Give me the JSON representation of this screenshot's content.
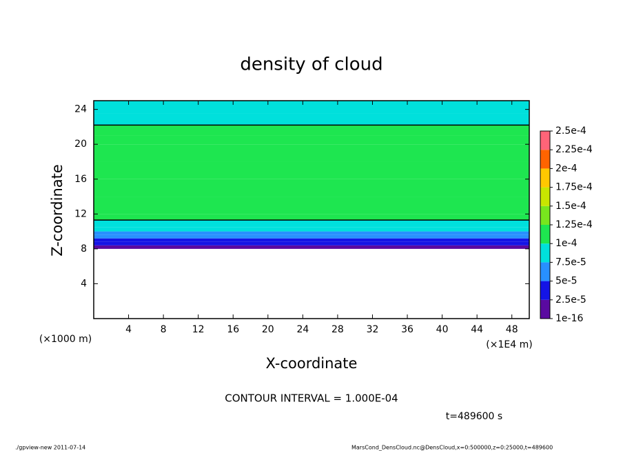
{
  "chart_data": {
    "type": "contour-profile",
    "title": "density of cloud",
    "x_label": "X-coordinate",
    "y_label": "Z-coordinate",
    "x_unit": "(×1E4 m)",
    "y_unit": "(×1000 m)",
    "xlim": [
      0,
      50
    ],
    "xticks": [
      4,
      8,
      12,
      16,
      20,
      24,
      28,
      32,
      36,
      40,
      44,
      48
    ],
    "ylim": [
      0,
      25
    ],
    "yticks": [
      4,
      8,
      12,
      16,
      20,
      24
    ],
    "z_bins": [
      8,
      8.4,
      8.8,
      9.2,
      9.6,
      10,
      10.5,
      11.3,
      12,
      14,
      16,
      18,
      20,
      21,
      22.2,
      23.5,
      25
    ],
    "values": [
      1e-05,
      3e-05,
      4e-05,
      5.5e-05,
      6.5e-05,
      7.5e-05,
      9e-05,
      0.000102,
      0.000105,
      0.00011,
      0.000115,
      0.00011,
      0.000105,
      0.000102,
      9e-05,
      8e-05
    ],
    "colorbar": {
      "levels": [
        {
          "value": 1e-16,
          "label": "1e-16"
        },
        {
          "value": 2.5e-05,
          "label": "2.5e-5"
        },
        {
          "value": 5e-05,
          "label": "5e-5"
        },
        {
          "value": 7.5e-05,
          "label": "7.5e-5"
        },
        {
          "value": 0.0001,
          "label": "1e-4"
        },
        {
          "value": 0.000125,
          "label": "1.25e-4"
        },
        {
          "value": 0.00015,
          "label": "1.5e-4"
        },
        {
          "value": 0.000175,
          "label": "1.75e-4"
        },
        {
          "value": 0.0002,
          "label": "2e-4"
        },
        {
          "value": 0.000225,
          "label": "2.25e-4"
        },
        {
          "value": 0.00025,
          "label": "2.5e-4"
        }
      ],
      "colors": [
        "#5a0aa0",
        "#1414e6",
        "#2890ff",
        "#00e0dc",
        "#1ee650",
        "#78e61e",
        "#c8e600",
        "#ffc800",
        "#ff6400",
        "#ff6478"
      ]
    },
    "contour_interval_text": "CONTOUR INTERVAL = 1.000E-04",
    "time_text": "t=489600 s",
    "footer_left": "./gpview-new  2011-07-14",
    "footer_right": "MarsCond_DensCloud.nc@DensCloud,x=0:500000,z=0:25000,t=489600"
  }
}
